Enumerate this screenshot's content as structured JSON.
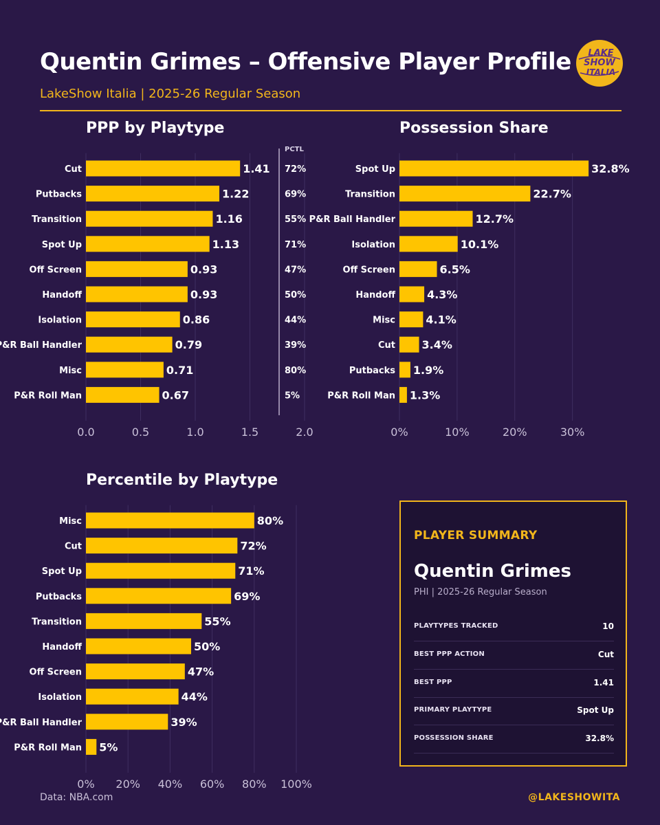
{
  "header": {
    "title": "Quentin Grimes – Offensive Player Profile",
    "subtitle": "LakeShow Italia | 2025-26 Regular Season",
    "logo_text_1": "LAKE",
    "logo_text_2": "SHOW",
    "logo_text_3": "ITALIA"
  },
  "colors": {
    "background": "#2a1847",
    "accent": "#f2b61b",
    "bar": "#ffc400",
    "text": "#ffffff"
  },
  "chart_data": [
    {
      "id": "ppp",
      "type": "bar",
      "orientation": "horizontal",
      "title": "PPP by Playtype",
      "categories": [
        "Cut",
        "Putbacks",
        "Transition",
        "Spot Up",
        "Off Screen",
        "Handoff",
        "Isolation",
        "P&R Ball Handler",
        "Misc",
        "P&R Roll Man"
      ],
      "values": [
        1.41,
        1.22,
        1.16,
        1.13,
        0.93,
        0.93,
        0.86,
        0.79,
        0.71,
        0.67
      ],
      "value_labels": [
        "1.41",
        "1.22",
        "1.16",
        "1.13",
        "0.93",
        "0.93",
        "0.86",
        "0.79",
        "0.71",
        "0.67"
      ],
      "xlim": [
        0,
        2.0
      ],
      "xticks": [
        0,
        0.5,
        1.0,
        1.5,
        2.0
      ],
      "xtick_labels": [
        "0.0",
        "0.5",
        "1.0",
        "1.5",
        "2.0"
      ],
      "side_column": {
        "header": "PCTL",
        "labels": [
          "72%",
          "69%",
          "55%",
          "71%",
          "47%",
          "50%",
          "44%",
          "39%",
          "80%",
          "5%"
        ]
      },
      "grid": true
    },
    {
      "id": "share",
      "type": "bar",
      "orientation": "horizontal",
      "title": "Possession Share",
      "categories": [
        "Spot Up",
        "Transition",
        "P&R Ball Handler",
        "Isolation",
        "Off Screen",
        "Handoff",
        "Misc",
        "Cut",
        "Putbacks",
        "P&R Roll Man"
      ],
      "values": [
        32.8,
        22.7,
        12.7,
        10.1,
        6.5,
        4.3,
        4.1,
        3.4,
        1.9,
        1.3
      ],
      "value_labels": [
        "32.8%",
        "22.7%",
        "12.7%",
        "10.1%",
        "6.5%",
        "4.3%",
        "4.1%",
        "3.4%",
        "1.9%",
        "1.3%"
      ],
      "xlim": [
        0,
        33.5
      ],
      "xticks": [
        0,
        10,
        20,
        30
      ],
      "xtick_labels": [
        "0%",
        "10%",
        "20%",
        "30%"
      ],
      "grid": true
    },
    {
      "id": "pctl",
      "type": "bar",
      "orientation": "horizontal",
      "title": "Percentile by Playtype",
      "categories": [
        "Misc",
        "Cut",
        "Spot Up",
        "Putbacks",
        "Transition",
        "Handoff",
        "Off Screen",
        "Isolation",
        "P&R Ball Handler",
        "P&R Roll Man"
      ],
      "values": [
        80,
        72,
        71,
        69,
        55,
        50,
        47,
        44,
        39,
        5
      ],
      "value_labels": [
        "80%",
        "72%",
        "71%",
        "69%",
        "55%",
        "50%",
        "47%",
        "44%",
        "39%",
        "5%"
      ],
      "xlim": [
        0,
        100
      ],
      "xticks": [
        0,
        20,
        40,
        60,
        80,
        100
      ],
      "xtick_labels": [
        "0%",
        "20%",
        "40%",
        "60%",
        "80%",
        "100%"
      ],
      "grid": true
    }
  ],
  "summary": {
    "heading": "PLAYER SUMMARY",
    "name": "Quentin Grimes",
    "meta": "PHI  |  2025-26 Regular Season",
    "rows": [
      {
        "label": "PLAYTYPES TRACKED",
        "value": "10"
      },
      {
        "label": "BEST PPP ACTION",
        "value": "Cut"
      },
      {
        "label": "BEST PPP",
        "value": "1.41"
      },
      {
        "label": "PRIMARY PLAYTYPE",
        "value": "Spot Up"
      },
      {
        "label": "POSSESSION SHARE",
        "value": "32.8%"
      }
    ]
  },
  "footer": {
    "source": "Data: NBA.com",
    "handle": "@LAKESHOWITA"
  }
}
